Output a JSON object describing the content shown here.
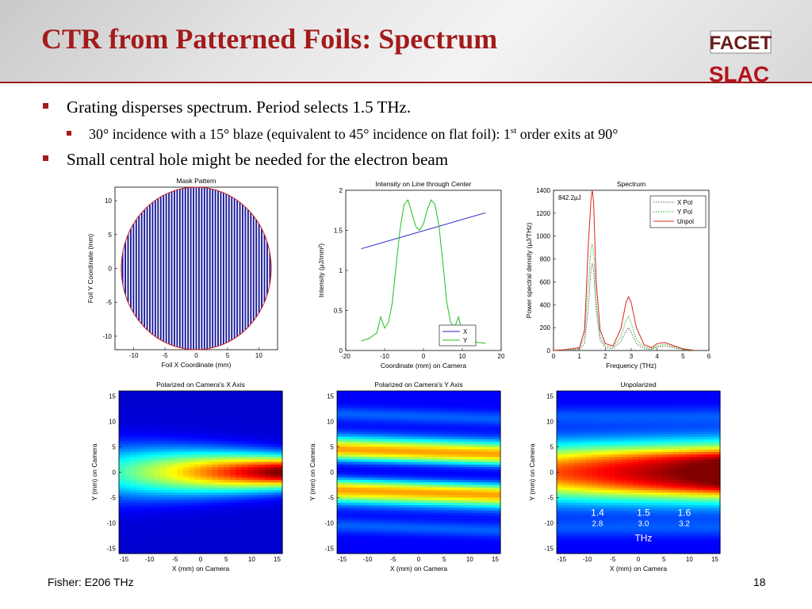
{
  "slide": {
    "title": "CTR from Patterned Foils: Spectrum",
    "bullets": {
      "b1": "Grating disperses spectrum. Period selects 1.5 THz.",
      "b2_pre": "30° incidence with a 15° blaze (equivalent to 45° incidence on flat foil): 1",
      "b2_sup": "st",
      "b2_post": " order exits at 90°",
      "b3": "Small central hole might be needed for the electron beam"
    },
    "logos": {
      "top": "FACET",
      "bottom": "SLAC"
    },
    "footer": {
      "left": "Fisher: E206 THz",
      "page": "18"
    }
  },
  "colors": {
    "title": "#a31b1b",
    "x_series": "#2020cc",
    "y_series": "#20c020",
    "unpol_series": "#e02020"
  },
  "chart_data": [
    {
      "id": "mask",
      "type": "scatter",
      "title": "Mask Pattern",
      "xlabel": "Foil X Coordinate (mm)",
      "ylabel": "Foil Y Coordinate (mm)",
      "xticks": [
        "-10",
        "-5",
        "0",
        "5",
        "10"
      ],
      "yticks": [
        "10",
        "5",
        "0",
        "-5",
        "-10"
      ],
      "xlim": [
        -13,
        13
      ],
      "ylim": [
        -12,
        12
      ],
      "circle_radius_mm": 12,
      "line_count": 55
    },
    {
      "id": "line",
      "type": "line",
      "title": "Intensity on Line through Center",
      "xlabel": "Coordinate (mm) on Camera",
      "ylabel": "Intensity (μJ/mm²)",
      "xticks": [
        "-20",
        "-10",
        "0",
        "10",
        "20"
      ],
      "yticks": [
        "2",
        "1.5",
        "1",
        "0.5",
        "0"
      ],
      "xlim": [
        -20,
        20
      ],
      "ylim": [
        0,
        2
      ],
      "legend": [
        "X",
        "Y"
      ],
      "legend_position": "bottom-right",
      "series": [
        {
          "name": "X",
          "x": [
            -16,
            16
          ],
          "y": [
            1.27,
            1.72
          ]
        },
        {
          "name": "Y",
          "x": [
            -16,
            -14,
            -12,
            -11,
            -10,
            -9,
            -8,
            -7,
            -6,
            -5,
            -4,
            -3,
            -2,
            -1,
            0,
            1,
            2,
            3,
            4,
            5,
            6,
            7,
            8,
            9,
            10,
            11,
            12,
            14,
            16
          ],
          "y": [
            0.12,
            0.15,
            0.22,
            0.42,
            0.28,
            0.35,
            0.6,
            1.08,
            1.52,
            1.82,
            1.88,
            1.72,
            1.55,
            1.5,
            1.58,
            1.76,
            1.88,
            1.82,
            1.55,
            1.1,
            0.6,
            0.35,
            0.28,
            0.42,
            0.22,
            0.15,
            0.12,
            0.1,
            0.09
          ]
        }
      ]
    },
    {
      "id": "spectrum",
      "type": "line",
      "title": "Spectrum",
      "xlabel": "Frequency (THz)",
      "ylabel": "Power spectral density (μJ/THz)",
      "xticks": [
        "0",
        "1",
        "2",
        "3",
        "4",
        "5",
        "6"
      ],
      "yticks": [
        "1400",
        "1200",
        "1000",
        "800",
        "600",
        "400",
        "200",
        "0"
      ],
      "xlim": [
        0,
        6
      ],
      "ylim": [
        0,
        1400
      ],
      "annotation": "842.2μJ",
      "legend": [
        "X Pol",
        "Y Pol",
        "Unpol"
      ],
      "legend_position": "top-right",
      "series": [
        {
          "name": "X Pol",
          "x": [
            0,
            0.5,
            1.0,
            1.2,
            1.35,
            1.45,
            1.5,
            1.55,
            1.65,
            1.8,
            2.0,
            2.3,
            2.6,
            2.8,
            2.9,
            3.0,
            3.2,
            3.5,
            3.8,
            4.0,
            4.3,
            4.6,
            5.0,
            5.4
          ],
          "y": [
            0,
            3,
            10,
            60,
            380,
            720,
            760,
            700,
            350,
            90,
            25,
            15,
            80,
            170,
            200,
            160,
            60,
            15,
            10,
            30,
            40,
            25,
            8,
            2
          ]
        },
        {
          "name": "Y Pol",
          "x": [
            0,
            0.5,
            1.0,
            1.2,
            1.35,
            1.45,
            1.5,
            1.55,
            1.65,
            1.8,
            2.0,
            2.3,
            2.6,
            2.8,
            2.9,
            3.0,
            3.2,
            3.5,
            3.8,
            4.0,
            4.3,
            4.6,
            5.0,
            5.4
          ],
          "y": [
            0,
            5,
            15,
            120,
            600,
            900,
            930,
            860,
            420,
            120,
            40,
            30,
            120,
            260,
            300,
            240,
            100,
            30,
            15,
            40,
            55,
            35,
            10,
            2
          ]
        },
        {
          "name": "Unpol",
          "x": [
            0,
            0.5,
            1.0,
            1.2,
            1.35,
            1.45,
            1.5,
            1.55,
            1.65,
            1.8,
            2.0,
            2.3,
            2.6,
            2.8,
            2.9,
            3.0,
            3.2,
            3.5,
            3.8,
            4.0,
            4.3,
            4.6,
            5.0,
            5.4
          ],
          "y": [
            0,
            8,
            25,
            180,
            950,
            1330,
            1400,
            1290,
            600,
            180,
            60,
            40,
            190,
            420,
            470,
            420,
            200,
            50,
            25,
            60,
            70,
            45,
            15,
            3
          ]
        }
      ]
    },
    {
      "id": "camx",
      "type": "heatmap",
      "title": "Polarized on Camera's X Axis",
      "xlabel": "X (mm) on Camera",
      "ylabel": "Y (mm) on Camera",
      "xticks": [
        "-15",
        "-10",
        "-5",
        "0",
        "5",
        "10",
        "15"
      ],
      "yticks": [
        "15",
        "10",
        "5",
        "0",
        "-5",
        "-10",
        "-15"
      ],
      "xlim": [
        -16,
        16
      ],
      "ylim": [
        -16,
        16
      ]
    },
    {
      "id": "camy",
      "type": "heatmap",
      "title": "Polarized on Camera's Y Axis",
      "xlabel": "X (mm) on Camera",
      "ylabel": "Y (mm) on Camera",
      "xticks": [
        "-15",
        "-10",
        "-5",
        "0",
        "5",
        "10",
        "15"
      ],
      "yticks": [
        "15",
        "10",
        "5",
        "0",
        "-5",
        "-10",
        "-15"
      ],
      "xlim": [
        -16,
        16
      ],
      "ylim": [
        -16,
        16
      ]
    },
    {
      "id": "unpol",
      "type": "heatmap",
      "title": "Unpolarized",
      "xlabel": "X (mm) on Camera",
      "ylabel": "Y (mm) on Camera",
      "xticks": [
        "-15",
        "-10",
        "-5",
        "0",
        "5",
        "10",
        "15"
      ],
      "yticks": [
        "15",
        "10",
        "5",
        "0",
        "-5",
        "-10",
        "-15"
      ],
      "xlim": [
        -16,
        16
      ],
      "ylim": [
        -16,
        16
      ],
      "annotations": [
        {
          "thz": "1.4",
          "mm": "2.8"
        },
        {
          "thz": "1.5",
          "mm": "3.0"
        },
        {
          "thz": "1.6",
          "mm": "3.2"
        }
      ],
      "annotation_unit": "THz"
    }
  ]
}
